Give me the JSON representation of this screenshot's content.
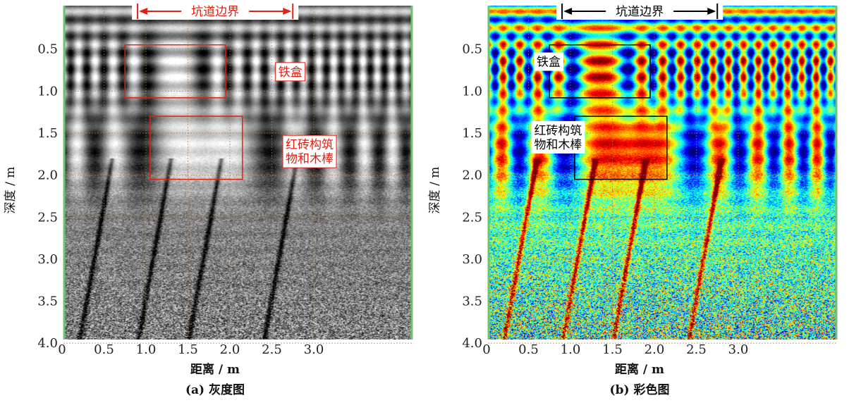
{
  "chart_data": [
    {
      "type": "heatmap",
      "subtitle": "(a) 灰度图",
      "xlabel": "距离 / m",
      "ylabel": "深度 / m",
      "xticks": [
        "0",
        "0.5",
        "1.0",
        "1.5",
        "2.0",
        "2.5",
        "3.0"
      ],
      "xtick_values": [
        0,
        0.5,
        1.0,
        1.5,
        2.0,
        2.5,
        3.0
      ],
      "yticks": [
        "0.5",
        "1.0",
        "1.5",
        "2.0",
        "2.5",
        "3.0",
        "3.5",
        "4.0"
      ],
      "ytick_values": [
        0.5,
        1.0,
        1.5,
        2.0,
        2.5,
        3.0,
        3.5,
        4.0
      ],
      "xlim": [
        0,
        3.45
      ],
      "ylim": [
        0,
        4.0
      ],
      "y_inverted": true,
      "grid": true,
      "colormap": "gray",
      "boundary": {
        "label": "坑道边界",
        "x_start": 0.9,
        "x_end": 2.75,
        "color": "#e02010"
      },
      "annotations": [
        {
          "label": "铁盒",
          "box_x": [
            0.75,
            1.95
          ],
          "box_y": [
            0.45,
            1.08
          ],
          "label_x": 2.72,
          "label_y": 0.77
        },
        {
          "label": "红砖构筑物和木棒",
          "lines": [
            "红砖构筑",
            "物和木棒"
          ],
          "box_x": [
            1.05,
            2.15
          ],
          "box_y": [
            1.3,
            2.05
          ],
          "label_x": 2.95,
          "label_y": 1.72
        }
      ],
      "annotation_color": "#e02010"
    },
    {
      "type": "heatmap",
      "subtitle": "(b) 彩色图",
      "xlabel": "距离 / m",
      "ylabel": "深度 / m",
      "xticks": [
        "0",
        "0.5",
        "1.0",
        "1.5",
        "2.0",
        "2.5",
        "3.0"
      ],
      "xtick_values": [
        0,
        0.5,
        1.0,
        1.5,
        2.0,
        2.5,
        3.0
      ],
      "yticks": [
        "0.5",
        "1.0",
        "1.5",
        "2.0",
        "2.5",
        "3.0",
        "3.5",
        "4.0"
      ],
      "ytick_values": [
        0.5,
        1.0,
        1.5,
        2.0,
        2.5,
        3.0,
        3.5,
        4.0
      ],
      "xlim": [
        0,
        3.45
      ],
      "ylim": [
        0,
        4.0
      ],
      "y_inverted": true,
      "grid": true,
      "colormap": "jet",
      "boundary": {
        "label": "坑道边界",
        "x_start": 0.9,
        "x_end": 2.75,
        "color": "#000000"
      },
      "annotations": [
        {
          "label": "铁盒",
          "box_x": [
            0.75,
            1.95
          ],
          "box_y": [
            0.45,
            1.08
          ],
          "label_x": 0.58,
          "label_y": 0.65
        },
        {
          "label": "红砖构筑物和木棒",
          "lines": [
            "红砖构筑",
            "物和木棒"
          ],
          "box_x": [
            1.05,
            2.15
          ],
          "box_y": [
            1.3,
            2.05
          ],
          "label_x": 0.55,
          "label_y": 1.55
        }
      ],
      "annotation_color": "#000000"
    }
  ]
}
